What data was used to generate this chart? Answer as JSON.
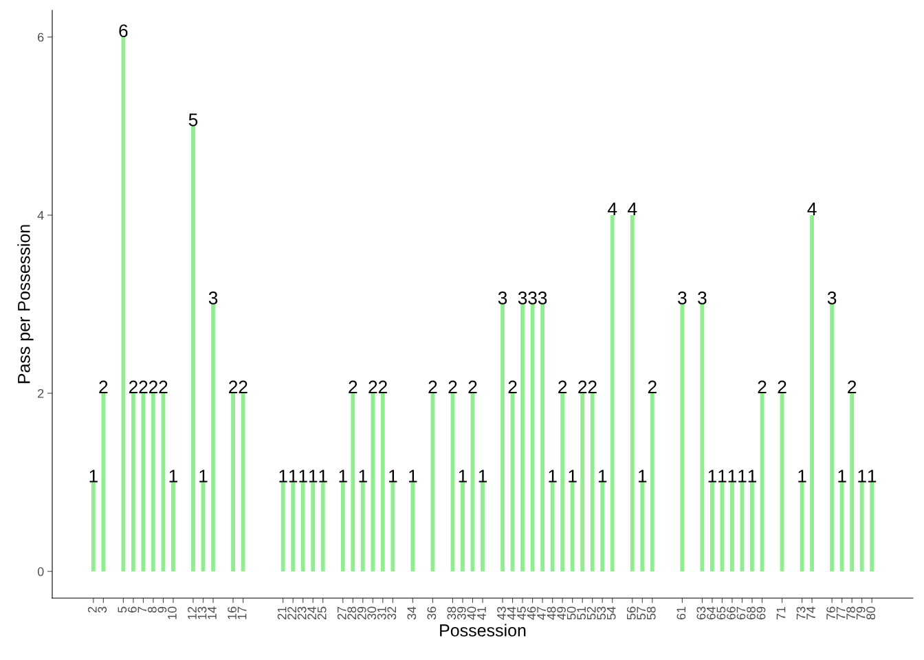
{
  "chart_data": {
    "type": "bar",
    "xlabel": "Possession",
    "ylabel": "Pass per Possession",
    "x": [
      2,
      3,
      5,
      6,
      7,
      8,
      9,
      10,
      12,
      13,
      14,
      16,
      17,
      21,
      22,
      23,
      24,
      25,
      27,
      28,
      29,
      30,
      31,
      32,
      34,
      36,
      38,
      39,
      40,
      41,
      43,
      44,
      45,
      46,
      47,
      48,
      49,
      50,
      51,
      52,
      53,
      54,
      56,
      57,
      58,
      61,
      63,
      64,
      65,
      66,
      67,
      68,
      69,
      71,
      73,
      74,
      76,
      77,
      78,
      79,
      80
    ],
    "values": [
      1,
      2,
      6,
      2,
      2,
      2,
      2,
      1,
      5,
      1,
      3,
      2,
      2,
      1,
      1,
      1,
      1,
      1,
      1,
      2,
      1,
      2,
      2,
      1,
      1,
      2,
      2,
      1,
      2,
      1,
      3,
      2,
      3,
      3,
      3,
      1,
      2,
      1,
      2,
      2,
      1,
      4,
      4,
      1,
      2,
      3,
      3,
      1,
      1,
      1,
      1,
      1,
      2,
      2,
      1,
      4,
      3,
      1,
      2,
      1,
      1
    ],
    "color": "#90ee90",
    "xlim": [
      -2.12,
      84.12
    ],
    "ylim": [
      -0.3,
      6.3
    ],
    "xticks": [
      2,
      3,
      5,
      6,
      7,
      8,
      9,
      10,
      12,
      13,
      14,
      16,
      17,
      21,
      22,
      23,
      24,
      25,
      27,
      28,
      29,
      30,
      31,
      32,
      34,
      36,
      38,
      39,
      40,
      41,
      43,
      44,
      45,
      46,
      47,
      48,
      49,
      50,
      51,
      52,
      53,
      54,
      56,
      57,
      58,
      61,
      63,
      64,
      65,
      66,
      67,
      68,
      69,
      71,
      73,
      74,
      76,
      77,
      78,
      79,
      80
    ],
    "yticks": [
      0,
      2,
      4,
      6
    ],
    "data_labels": true,
    "grid": false
  }
}
